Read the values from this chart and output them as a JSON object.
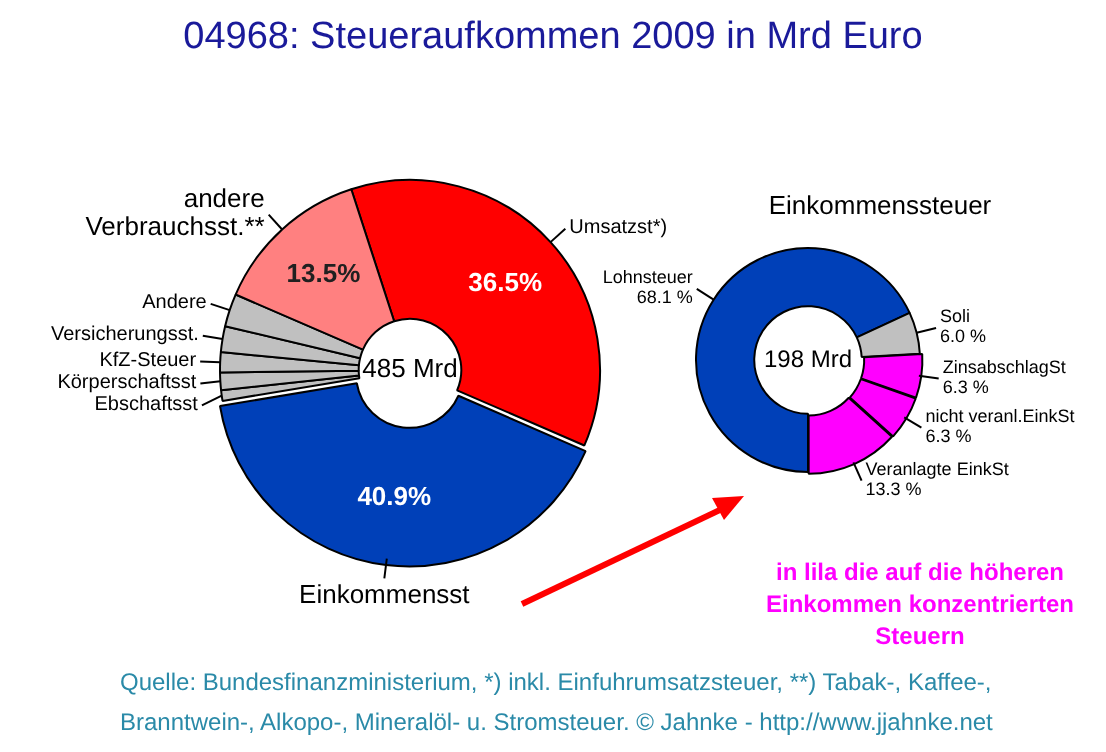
{
  "chart_data": [
    {
      "type": "donut",
      "title": "04968: Steueraufkommen 2009 in Mrd Euro",
      "categories": [
        "Umsatzst*)",
        "Einkommensst",
        "Ebschaftsst",
        "Körperschaftsst",
        "KfZ-Steuer",
        "Versicherungsst.",
        "Andere",
        "andere Verbrauchsst.**"
      ],
      "values": [
        36.5,
        40.9,
        0.9,
        1.5,
        1.7,
        2.2,
        2.8,
        13.5
      ],
      "colors": [
        "#ff0000",
        "#0040b8",
        "#c0c0c0",
        "#c0c0c0",
        "#c0c0c0",
        "#c0c0c0",
        "#c0c0c0",
        "#ff8080"
      ],
      "value_labels": [
        "36.5%",
        "40.9%",
        null,
        null,
        null,
        null,
        null,
        "13.5%"
      ],
      "annotations": [
        "485 Mrd",
        "Quelle: Bundesfinanzministerium, *) inkl. Einfuhrumsatzsteuer, **) Tabak-, Kaffee-, Branntwein-, Alkopo-, Mineralöl- u. Stromsteuer. © Jahnke - http://www.jjahnke.net"
      ]
    },
    {
      "type": "donut",
      "title": "Einkommenssteuer",
      "categories": [
        "Lohnsteuer",
        "Soli",
        "ZinsabschlagSt",
        "nicht veranl.EinkSt",
        "Veranlagte EinkSt"
      ],
      "values": [
        68.1,
        6.0,
        6.3,
        6.3,
        13.3
      ],
      "colors": [
        "#0040b8",
        "#c0c0c0",
        "#ff00ff",
        "#ff00ff",
        "#ff00ff"
      ],
      "value_labels": [
        "68.1 %",
        "6.0 %",
        "6.3 %",
        "6.3 %",
        "13.3 %"
      ],
      "annotations": [
        "198 Mrd",
        "in lila die auf die höheren Einkommen konzentrierten Steuern"
      ]
    }
  ]
}
